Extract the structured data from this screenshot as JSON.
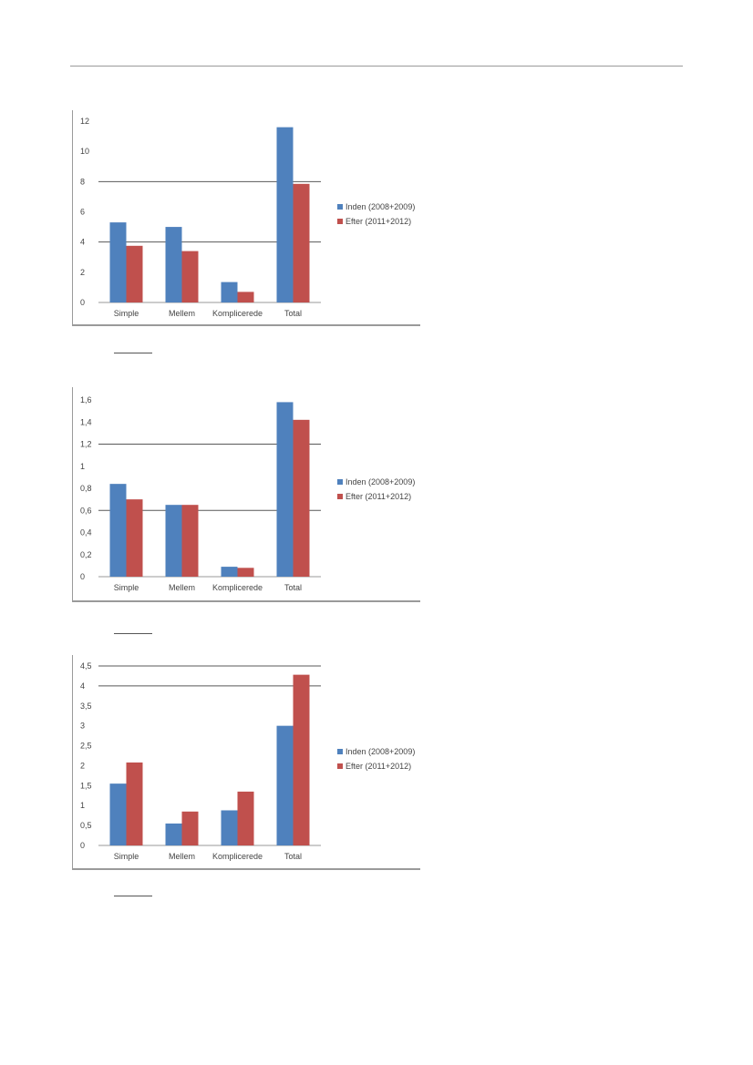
{
  "colors": {
    "before": "#4f81bd",
    "after": "#c0504d",
    "gridline": "#595959",
    "axis": "#9a9a9a"
  },
  "chart_data": [
    {
      "type": "bar",
      "categories": [
        "Simple",
        "Mellem",
        "Komplicerede",
        "Total"
      ],
      "series": [
        {
          "name": "Inden (2008+2009)",
          "values": [
            5.3,
            5.0,
            1.35,
            11.6
          ]
        },
        {
          "name": "Efter (2011+2012)",
          "values": [
            3.75,
            3.4,
            0.7,
            7.85
          ]
        }
      ],
      "ylim": [
        0,
        12
      ],
      "yticks": [
        0,
        2,
        4,
        6,
        8,
        10,
        12
      ],
      "ytick_labels": [
        "0",
        "2",
        "4",
        "6",
        "8",
        "10",
        "12"
      ],
      "gridlines_at": [
        4,
        8
      ],
      "legend": "right"
    },
    {
      "type": "bar",
      "categories": [
        "Simple",
        "Mellem",
        "Komplicerede",
        "Total"
      ],
      "series": [
        {
          "name": "Inden (2008+2009)",
          "values": [
            0.84,
            0.65,
            0.09,
            1.58
          ]
        },
        {
          "name": "Efter (2011+2012)",
          "values": [
            0.7,
            0.65,
            0.08,
            1.42
          ]
        }
      ],
      "ylim": [
        0,
        1.6
      ],
      "yticks": [
        0,
        0.2,
        0.4,
        0.6,
        0.8,
        1.0,
        1.2,
        1.4,
        1.6
      ],
      "ytick_labels": [
        "0",
        "0,2",
        "0,4",
        "0,6",
        "0,8",
        "1",
        "1,2",
        "1,4",
        "1,6"
      ],
      "gridlines_at": [
        0.6,
        1.2
      ],
      "legend": "right"
    },
    {
      "type": "bar",
      "categories": [
        "Simple",
        "Mellem",
        "Komplicerede",
        "Total"
      ],
      "series": [
        {
          "name": "Inden (2008+2009)",
          "values": [
            1.55,
            0.55,
            0.88,
            3.0
          ]
        },
        {
          "name": "Efter (2011+2012)",
          "values": [
            2.08,
            0.85,
            1.35,
            4.28
          ]
        }
      ],
      "ylim": [
        0,
        4.5
      ],
      "yticks": [
        0,
        0.5,
        1.0,
        1.5,
        2.0,
        2.5,
        3.0,
        3.5,
        4.0,
        4.5
      ],
      "ytick_labels": [
        "0",
        "0,5",
        "1",
        "1,5",
        "2",
        "2,5",
        "3",
        "3,5",
        "4",
        "4,5"
      ],
      "gridlines_at": [
        4.0,
        4.5
      ],
      "legend": "right"
    }
  ]
}
